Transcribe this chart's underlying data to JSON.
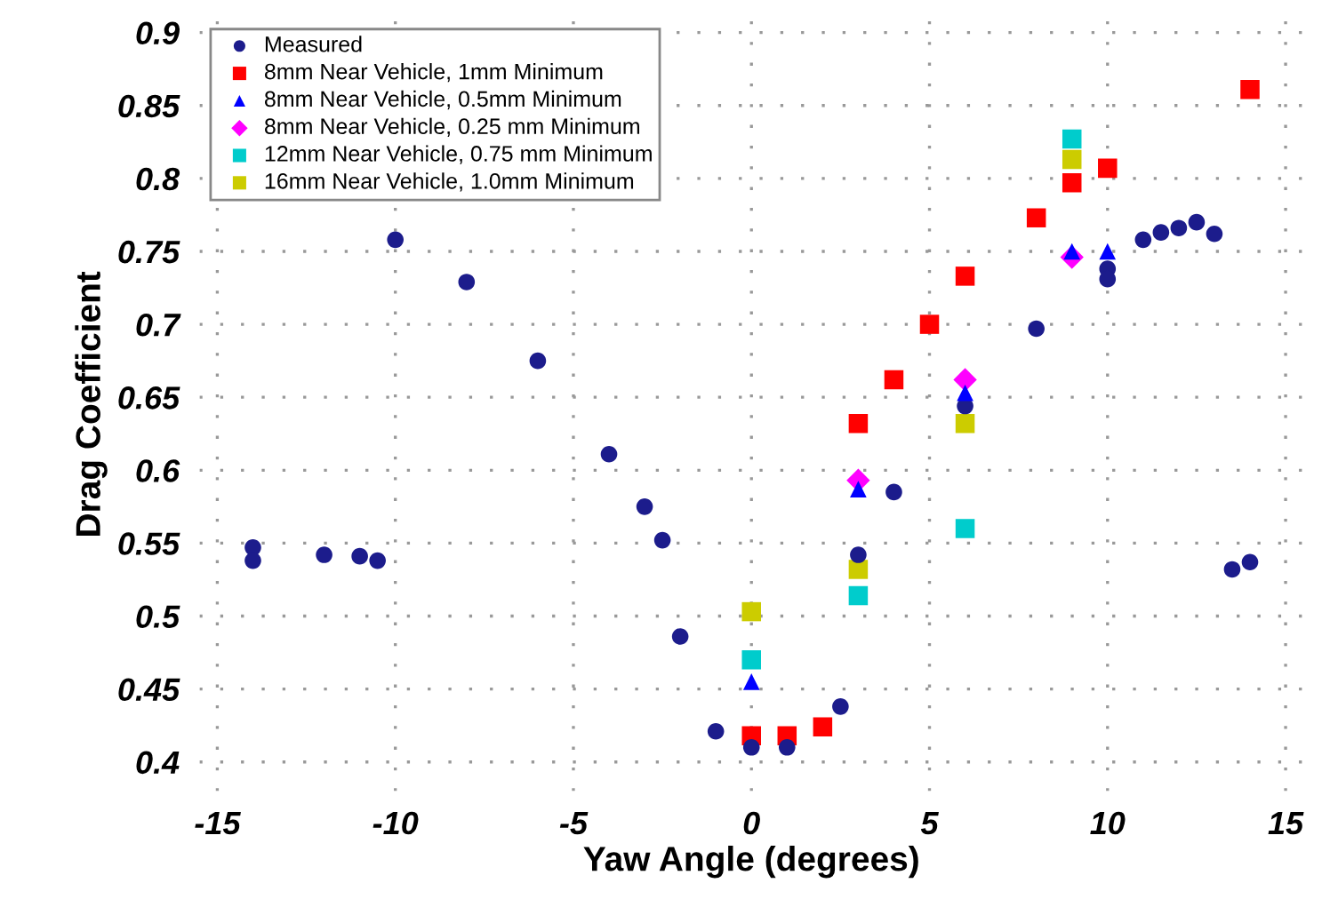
{
  "chart_data": {
    "type": "scatter",
    "xlabel": "Yaw Angle (degrees)",
    "ylabel": "Drag Coefficient",
    "xlim": [
      -15.5,
      15.5
    ],
    "ylim": [
      0.38,
      0.91
    ],
    "xticks": [
      -15,
      -10,
      -5,
      0,
      5,
      10,
      15
    ],
    "yticks": [
      0.4,
      0.45,
      0.5,
      0.55,
      0.6,
      0.65,
      0.7,
      0.75,
      0.8,
      0.85,
      0.9
    ],
    "grid": true,
    "legend": "top left",
    "series": [
      {
        "name": "Measured",
        "color": "#1c1c8c",
        "marker": "circle",
        "x": [
          -14,
          -14,
          -12,
          -11,
          -10.5,
          -10,
          -8,
          -6,
          -4,
          -3,
          -2.5,
          -2,
          -1,
          0,
          1,
          2.5,
          3,
          4,
          6,
          8,
          10,
          10,
          11,
          11.5,
          12,
          12.5,
          13,
          13.5,
          14
        ],
        "values": [
          0.547,
          0.538,
          0.542,
          0.541,
          0.538,
          0.758,
          0.729,
          0.675,
          0.611,
          0.575,
          0.552,
          0.486,
          0.421,
          0.41,
          0.41,
          0.438,
          0.542,
          0.585,
          0.644,
          0.697,
          0.738,
          0.731,
          0.758,
          0.763,
          0.766,
          0.77,
          0.762,
          0.532,
          0.537
        ]
      },
      {
        "name": "8mm Near Vehicle, 1mm Minimum",
        "color": "#ff0000",
        "marker": "square",
        "x": [
          0,
          1,
          2,
          3,
          4,
          5,
          6,
          8,
          9,
          10,
          14
        ],
        "values": [
          0.418,
          0.418,
          0.424,
          0.632,
          0.662,
          0.7,
          0.733,
          0.773,
          0.797,
          0.807,
          0.861
        ]
      },
      {
        "name": "8mm Near Vehicle, 0.5mm Minimum",
        "color": "#0000ff",
        "marker": "triangle",
        "x": [
          0,
          3,
          6,
          9,
          10
        ],
        "values": [
          0.455,
          0.587,
          0.653,
          0.75,
          0.75
        ]
      },
      {
        "name": "8mm Near Vehicle, 0.25 mm Minimum",
        "color": "#ff00ff",
        "marker": "diamond",
        "x": [
          3,
          6,
          9
        ],
        "values": [
          0.593,
          0.662,
          0.746
        ]
      },
      {
        "name": "12mm Near Vehicle, 0.75 mm Minimum",
        "color": "#00cccc",
        "marker": "square",
        "x": [
          0,
          3,
          6,
          9
        ],
        "values": [
          0.47,
          0.514,
          0.56,
          0.827
        ]
      },
      {
        "name": "16mm Near Vehicle, 1.0mm Minimum",
        "color": "#cccc00",
        "marker": "square",
        "x": [
          0,
          3,
          6,
          9
        ],
        "values": [
          0.503,
          0.532,
          0.632,
          0.813
        ]
      }
    ]
  }
}
